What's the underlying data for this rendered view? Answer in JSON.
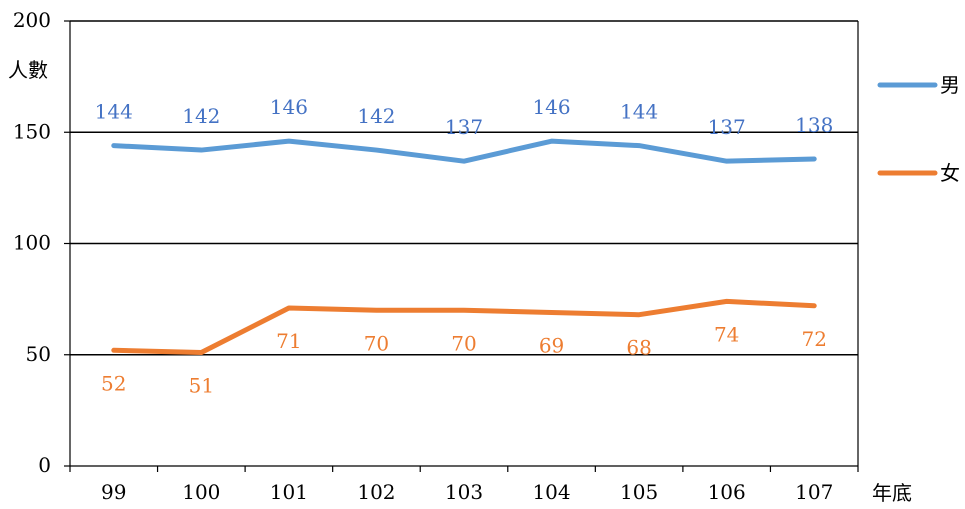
{
  "chart_data": {
    "type": "line",
    "ylabel": "人數",
    "xlabel": "年底",
    "ylim": [
      0,
      200
    ],
    "y_ticks": [
      0,
      50,
      100,
      150,
      200
    ],
    "categories": [
      "99",
      "100",
      "101",
      "102",
      "103",
      "104",
      "105",
      "106",
      "107"
    ],
    "grid": true,
    "legend_position": "right",
    "series": [
      {
        "name": "男",
        "color": "#5B9BD5",
        "label_color": "#4472C4",
        "values": [
          144,
          142,
          146,
          142,
          137,
          146,
          144,
          137,
          138
        ]
      },
      {
        "name": "女",
        "color": "#ED7D31",
        "label_color": "#ED7D31",
        "values": [
          52,
          51,
          71,
          70,
          70,
          69,
          68,
          74,
          72
        ]
      }
    ]
  }
}
